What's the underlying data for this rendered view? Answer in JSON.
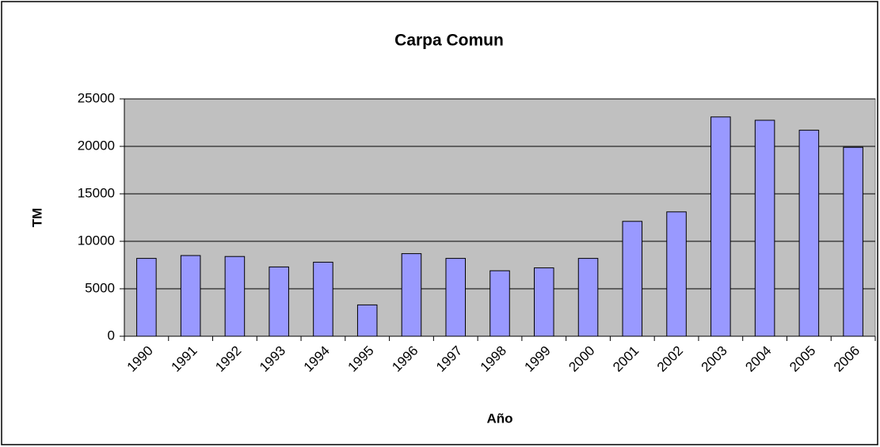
{
  "chart_data": {
    "type": "bar",
    "title": "Carpa Comun",
    "x_label": "Año",
    "y_label": "TM",
    "categories": [
      "1990",
      "1991",
      "1992",
      "1993",
      "1994",
      "1995",
      "1996",
      "1997",
      "1998",
      "1999",
      "2000",
      "2001",
      "2002",
      "2003",
      "2004",
      "2005",
      "2006"
    ],
    "values": [
      8200,
      8500,
      8400,
      7300,
      7800,
      3300,
      8700,
      8200,
      6900,
      7200,
      8200,
      12100,
      13100,
      23100,
      22750,
      21700,
      19900
    ],
    "color": "#9999ff",
    "ylim": [
      0,
      25000
    ],
    "yticks": [
      0,
      5000,
      10000,
      15000,
      20000,
      25000
    ],
    "grid": true
  }
}
